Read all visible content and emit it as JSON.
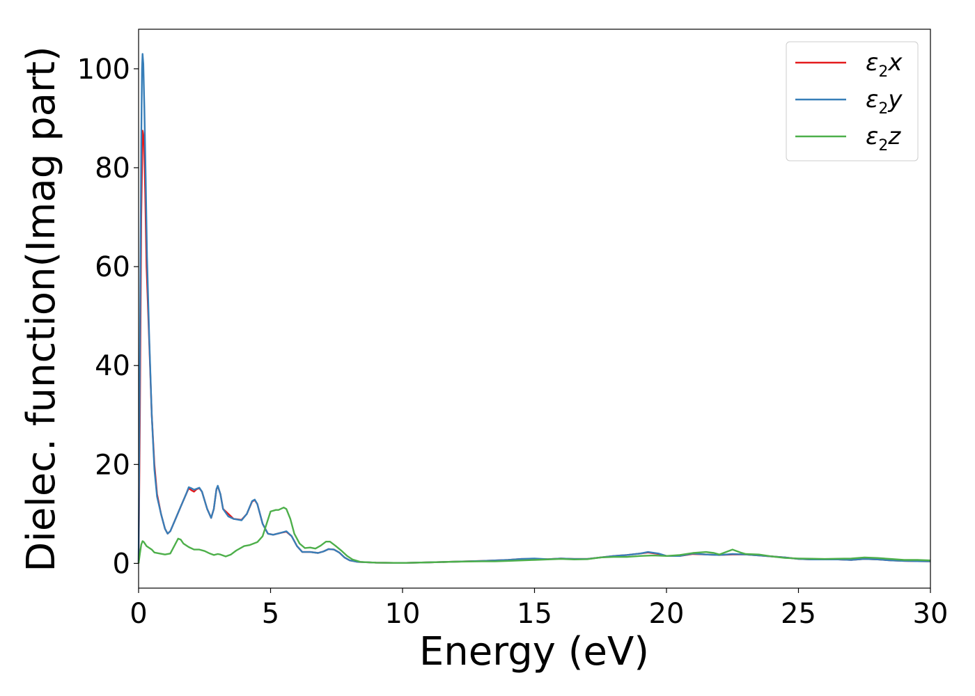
{
  "chart_data": {
    "type": "line",
    "title": "",
    "xlabel": "Energy (eV)",
    "ylabel": "Dielec. function(Imag part)",
    "xlim": [
      0,
      30
    ],
    "ylim": [
      -5,
      108
    ],
    "xticks": [
      0,
      5,
      10,
      15,
      20,
      25,
      30
    ],
    "yticks": [
      0,
      20,
      40,
      60,
      80,
      100
    ],
    "grid": false,
    "legend_position": "top-right",
    "series": [
      {
        "name": "ε2x",
        "legend": {
          "symbol": "ε",
          "sub": "2",
          "var": "x"
        },
        "color": "#e41a1c",
        "points": [
          [
            0,
            0
          ],
          [
            0.05,
            30
          ],
          [
            0.1,
            70
          ],
          [
            0.15,
            87.5
          ],
          [
            0.2,
            86
          ],
          [
            0.25,
            75
          ],
          [
            0.3,
            60
          ],
          [
            0.4,
            45
          ],
          [
            0.5,
            30
          ],
          [
            0.6,
            20
          ],
          [
            0.7,
            14
          ],
          [
            0.85,
            10
          ],
          [
            1.0,
            7
          ],
          [
            1.1,
            6
          ],
          [
            1.2,
            6.5
          ],
          [
            1.4,
            9
          ],
          [
            1.6,
            11.5
          ],
          [
            1.8,
            14
          ],
          [
            1.9,
            15.2
          ],
          [
            2.0,
            14.8
          ],
          [
            2.1,
            14.5
          ],
          [
            2.2,
            15
          ],
          [
            2.3,
            15.2
          ],
          [
            2.4,
            14.5
          ],
          [
            2.6,
            11
          ],
          [
            2.75,
            9.2
          ],
          [
            2.85,
            11
          ],
          [
            2.95,
            15
          ],
          [
            3.0,
            15.6
          ],
          [
            3.1,
            14
          ],
          [
            3.2,
            11
          ],
          [
            3.4,
            10
          ],
          [
            3.6,
            9
          ],
          [
            3.9,
            8.8
          ],
          [
            4.1,
            10
          ],
          [
            4.3,
            12.5
          ],
          [
            4.4,
            12.8
          ],
          [
            4.5,
            12
          ],
          [
            4.7,
            8
          ],
          [
            4.9,
            6
          ],
          [
            5.1,
            5.8
          ],
          [
            5.4,
            6.2
          ],
          [
            5.6,
            6.4
          ],
          [
            5.8,
            5.5
          ],
          [
            6.0,
            3.5
          ],
          [
            6.2,
            2.3
          ],
          [
            6.5,
            2.3
          ],
          [
            6.8,
            2.1
          ],
          [
            7.0,
            2.4
          ],
          [
            7.2,
            2.9
          ],
          [
            7.4,
            2.8
          ],
          [
            7.6,
            2.2
          ],
          [
            7.8,
            1.2
          ],
          [
            8.0,
            0.6
          ],
          [
            8.3,
            0.3
          ],
          [
            9.0,
            0.15
          ],
          [
            10,
            0.1
          ],
          [
            11,
            0.2
          ],
          [
            12,
            0.35
          ],
          [
            13,
            0.5
          ],
          [
            14,
            0.7
          ],
          [
            14.5,
            0.9
          ],
          [
            15,
            0.9
          ],
          [
            15.5,
            0.85
          ],
          [
            16,
            1
          ],
          [
            16.5,
            0.9
          ],
          [
            17,
            0.9
          ],
          [
            17.5,
            1.2
          ],
          [
            18,
            1.5
          ],
          [
            18.5,
            1.7
          ],
          [
            19,
            2
          ],
          [
            19.3,
            2.2
          ],
          [
            19.7,
            1.9
          ],
          [
            20,
            1.5
          ],
          [
            20.5,
            1.5
          ],
          [
            21,
            1.9
          ],
          [
            21.5,
            1.8
          ],
          [
            22,
            1.7
          ],
          [
            22.5,
            1.8
          ],
          [
            23,
            1.8
          ],
          [
            23.5,
            1.6
          ],
          [
            24,
            1.4
          ],
          [
            24.5,
            1.2
          ],
          [
            25,
            0.9
          ],
          [
            25.5,
            0.8
          ],
          [
            26,
            0.8
          ],
          [
            26.5,
            0.8
          ],
          [
            27,
            0.7
          ],
          [
            27.5,
            0.9
          ],
          [
            28,
            0.8
          ],
          [
            28.5,
            0.6
          ],
          [
            29,
            0.5
          ],
          [
            29.5,
            0.45
          ],
          [
            30,
            0.4
          ]
        ]
      },
      {
        "name": "ε2y",
        "legend": {
          "symbol": "ε",
          "sub": "2",
          "var": "y"
        },
        "color": "#377eb8",
        "points": [
          [
            0,
            0
          ],
          [
            0.03,
            25
          ],
          [
            0.07,
            60
          ],
          [
            0.1,
            85
          ],
          [
            0.13,
            100
          ],
          [
            0.15,
            103
          ],
          [
            0.18,
            101
          ],
          [
            0.22,
            92
          ],
          [
            0.27,
            78
          ],
          [
            0.32,
            62
          ],
          [
            0.4,
            46
          ],
          [
            0.5,
            30
          ],
          [
            0.6,
            19
          ],
          [
            0.7,
            13.5
          ],
          [
            0.85,
            10
          ],
          [
            1.0,
            7
          ],
          [
            1.1,
            6
          ],
          [
            1.2,
            6.5
          ],
          [
            1.4,
            9
          ],
          [
            1.6,
            11.5
          ],
          [
            1.8,
            14
          ],
          [
            1.9,
            15.4
          ],
          [
            2.0,
            15.2
          ],
          [
            2.1,
            14.9
          ],
          [
            2.2,
            15.1
          ],
          [
            2.3,
            15.3
          ],
          [
            2.4,
            14.5
          ],
          [
            2.6,
            11
          ],
          [
            2.75,
            9.2
          ],
          [
            2.85,
            11
          ],
          [
            2.95,
            15
          ],
          [
            3.0,
            15.7
          ],
          [
            3.1,
            14
          ],
          [
            3.2,
            11
          ],
          [
            3.4,
            9.5
          ],
          [
            3.6,
            9
          ],
          [
            3.9,
            8.7
          ],
          [
            4.1,
            10
          ],
          [
            4.3,
            12.6
          ],
          [
            4.4,
            12.9
          ],
          [
            4.5,
            12
          ],
          [
            4.7,
            8
          ],
          [
            4.9,
            6
          ],
          [
            5.1,
            5.8
          ],
          [
            5.4,
            6.2
          ],
          [
            5.6,
            6.5
          ],
          [
            5.8,
            5.5
          ],
          [
            6.0,
            3.5
          ],
          [
            6.2,
            2.3
          ],
          [
            6.5,
            2.3
          ],
          [
            6.8,
            2.1
          ],
          [
            7.0,
            2.4
          ],
          [
            7.2,
            2.9
          ],
          [
            7.4,
            2.8
          ],
          [
            7.6,
            2.2
          ],
          [
            7.8,
            1.2
          ],
          [
            8.0,
            0.6
          ],
          [
            8.3,
            0.3
          ],
          [
            9.0,
            0.15
          ],
          [
            10,
            0.1
          ],
          [
            11,
            0.2
          ],
          [
            12,
            0.35
          ],
          [
            13,
            0.5
          ],
          [
            14,
            0.7
          ],
          [
            14.5,
            0.9
          ],
          [
            15,
            1
          ],
          [
            15.5,
            0.85
          ],
          [
            16,
            1
          ],
          [
            16.5,
            0.9
          ],
          [
            17,
            0.9
          ],
          [
            17.5,
            1.2
          ],
          [
            18,
            1.5
          ],
          [
            18.5,
            1.7
          ],
          [
            19,
            2
          ],
          [
            19.3,
            2.3
          ],
          [
            19.7,
            2
          ],
          [
            20,
            1.5
          ],
          [
            20.5,
            1.5
          ],
          [
            21,
            2
          ],
          [
            21.5,
            1.8
          ],
          [
            22,
            1.7
          ],
          [
            22.5,
            1.9
          ],
          [
            23,
            1.8
          ],
          [
            23.5,
            1.6
          ],
          [
            24,
            1.4
          ],
          [
            24.5,
            1.2
          ],
          [
            25,
            0.9
          ],
          [
            25.5,
            0.8
          ],
          [
            26,
            0.8
          ],
          [
            26.5,
            0.8
          ],
          [
            27,
            0.7
          ],
          [
            27.5,
            0.9
          ],
          [
            28,
            0.8
          ],
          [
            28.5,
            0.6
          ],
          [
            29,
            0.5
          ],
          [
            29.5,
            0.45
          ],
          [
            30,
            0.4
          ]
        ]
      },
      {
        "name": "ε2z",
        "legend": {
          "symbol": "ε",
          "sub": "2",
          "var": "z"
        },
        "color": "#4daf4a",
        "points": [
          [
            0,
            0
          ],
          [
            0.05,
            2
          ],
          [
            0.1,
            3.8
          ],
          [
            0.15,
            4.5
          ],
          [
            0.2,
            4.3
          ],
          [
            0.3,
            3.5
          ],
          [
            0.5,
            2.8
          ],
          [
            0.6,
            2.2
          ],
          [
            0.8,
            2
          ],
          [
            1.0,
            1.8
          ],
          [
            1.2,
            2
          ],
          [
            1.35,
            3.5
          ],
          [
            1.5,
            5
          ],
          [
            1.6,
            4.8
          ],
          [
            1.7,
            4
          ],
          [
            1.9,
            3.3
          ],
          [
            2.1,
            2.8
          ],
          [
            2.3,
            2.8
          ],
          [
            2.5,
            2.5
          ],
          [
            2.7,
            2
          ],
          [
            2.85,
            1.7
          ],
          [
            3.0,
            1.9
          ],
          [
            3.1,
            1.8
          ],
          [
            3.3,
            1.4
          ],
          [
            3.5,
            1.8
          ],
          [
            3.7,
            2.6
          ],
          [
            4.0,
            3.5
          ],
          [
            4.2,
            3.7
          ],
          [
            4.5,
            4.3
          ],
          [
            4.7,
            5.5
          ],
          [
            4.85,
            8
          ],
          [
            5.0,
            10.5
          ],
          [
            5.2,
            10.8
          ],
          [
            5.3,
            10.8
          ],
          [
            5.5,
            11.3
          ],
          [
            5.6,
            11
          ],
          [
            5.75,
            9
          ],
          [
            5.9,
            6
          ],
          [
            6.1,
            4
          ],
          [
            6.3,
            3.1
          ],
          [
            6.5,
            3.2
          ],
          [
            6.7,
            3
          ],
          [
            6.9,
            3.6
          ],
          [
            7.1,
            4.4
          ],
          [
            7.25,
            4.4
          ],
          [
            7.45,
            3.6
          ],
          [
            7.7,
            2.5
          ],
          [
            7.9,
            1.5
          ],
          [
            8.1,
            0.8
          ],
          [
            8.4,
            0.3
          ],
          [
            9,
            0.15
          ],
          [
            10,
            0.1
          ],
          [
            11,
            0.2
          ],
          [
            12,
            0.35
          ],
          [
            13,
            0.4
          ],
          [
            13.5,
            0.4
          ],
          [
            14,
            0.5
          ],
          [
            15,
            0.7
          ],
          [
            16,
            0.9
          ],
          [
            16.5,
            0.8
          ],
          [
            17,
            0.85
          ],
          [
            17.5,
            1.2
          ],
          [
            18,
            1.3
          ],
          [
            18.5,
            1.3
          ],
          [
            19,
            1.5
          ],
          [
            19.5,
            1.6
          ],
          [
            20,
            1.5
          ],
          [
            20.5,
            1.7
          ],
          [
            21,
            2.1
          ],
          [
            21.5,
            2.3
          ],
          [
            21.8,
            2.1
          ],
          [
            22,
            1.8
          ],
          [
            22.5,
            2.8
          ],
          [
            22.8,
            2.2
          ],
          [
            23,
            1.9
          ],
          [
            23.5,
            1.8
          ],
          [
            24,
            1.4
          ],
          [
            24.5,
            1.1
          ],
          [
            25,
            1
          ],
          [
            25.5,
            0.95
          ],
          [
            26,
            0.9
          ],
          [
            26.5,
            0.95
          ],
          [
            27,
            1
          ],
          [
            27.5,
            1.2
          ],
          [
            28,
            1.1
          ],
          [
            28.5,
            0.9
          ],
          [
            29,
            0.7
          ],
          [
            29.5,
            0.7
          ],
          [
            30,
            0.6
          ]
        ]
      }
    ]
  }
}
